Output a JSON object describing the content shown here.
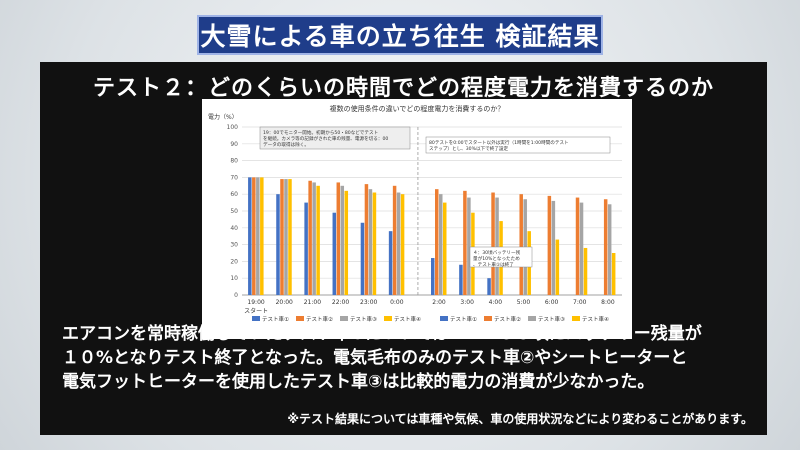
{
  "header": {
    "title": "大雪による車の立ち往生 検証結果"
  },
  "panel": {
    "subtitle": "テスト２：どのくらいの時間でどの程度電力を消費するのか"
  },
  "description": [
    "エアコンを常時稼働していたテスト車①についてはAM4:３０頃にバッテリー残量が",
    "１０%となりテスト終了となった。電気毛布のみのテスト車②やシートヒーターと",
    "電気フットヒーターを使用したテスト車③は比較的電力の消費が少なかった。"
  ],
  "footnote": "※テスト結果については車種や気候、車の使用状況などにより変わることがあります。",
  "colors": {
    "car1": "#4472c4",
    "car2": "#ed7d31",
    "car3": "#a5a5a5",
    "car4": "#ffc000",
    "title_bg": "#1f3d8a"
  },
  "chart_data": {
    "type": "bar",
    "title": "複数の使用条件の違いでどの程度電力を消費するのか？",
    "ylabel": "電力（%）",
    "ylim": [
      0,
      100
    ],
    "yticks": [
      0,
      10,
      20,
      30,
      40,
      50,
      60,
      70,
      80,
      90,
      100
    ],
    "categories": [
      "19:00",
      "20:00",
      "21:00",
      "22:00",
      "23:00",
      "0:00",
      "2:00",
      "3:00",
      "4:00",
      "5:00",
      "6:00",
      "7:00",
      "8:00"
    ],
    "start_label": "スタート",
    "series": [
      {
        "name": "テスト車①",
        "values": [
          70,
          60,
          55,
          49,
          43,
          38,
          22,
          18,
          10,
          null,
          null,
          null,
          null
        ]
      },
      {
        "name": "テスト車②",
        "values": [
          70,
          69,
          68,
          67,
          66,
          65,
          63,
          62,
          61,
          60,
          59,
          58,
          57
        ]
      },
      {
        "name": "テスト車③",
        "values": [
          70,
          69,
          67,
          65,
          63,
          61,
          60,
          58,
          58,
          57,
          56,
          55,
          54
        ]
      },
      {
        "name": "テスト車④",
        "values": [
          70,
          69,
          65,
          62,
          61,
          60,
          55,
          49,
          44,
          38,
          33,
          28,
          25
        ]
      }
    ],
    "annotations": [
      "19：00でモニター開始。初期から50・80などでテストを継続。カメラ等の記録がされた車の残量、電源を切る：00データの取得は除く。",
      "80テストを0:00でスタート以外は実行（1時間を1:00時間のテストステップ）とし、30%以下で終了設定",
      "４：30頃バッテリー残量が10%となったため、テスト車①は終了"
    ]
  }
}
